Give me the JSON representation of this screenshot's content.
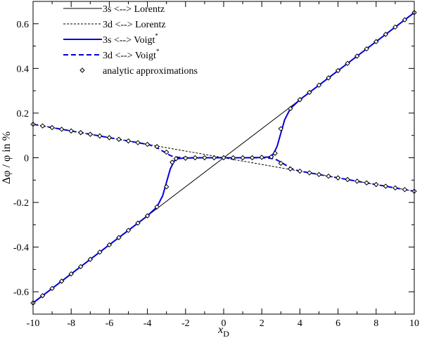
{
  "chart_data": {
    "type": "line",
    "xlabel": "x",
    "xlabel_sub": "D",
    "ylabel": "Δφ / φ in %",
    "xlim": [
      -10,
      10
    ],
    "ylim": [
      -0.7,
      0.7
    ],
    "x_ticks": [
      "-10",
      "-8",
      "-6",
      "-4",
      "-2",
      "0",
      "2",
      "4",
      "6",
      "8",
      "10"
    ],
    "y_ticks": [
      "-0.6",
      "-0.4",
      "-0.2",
      "0",
      "0.2",
      "0.4",
      "0.6"
    ],
    "x_tick_values": [
      -10,
      -8,
      -6,
      -4,
      -2,
      0,
      2,
      4,
      6,
      8,
      10
    ],
    "y_tick_values": [
      -0.6,
      -0.4,
      -0.2,
      0,
      0.2,
      0.4,
      0.6
    ],
    "legend_position": "top-left",
    "legend": [
      {
        "label": "3s <--> Lorentz",
        "style": "solid",
        "color": "#000000",
        "sup": ""
      },
      {
        "label": "3d <--> Lorentz",
        "style": "dashed",
        "color": "#000000",
        "sup": ""
      },
      {
        "label": "3s <--> Voigt",
        "style": "solid",
        "color": "#0000dd",
        "sup": "*"
      },
      {
        "label": "3d <--> Voigt",
        "style": "dashed",
        "color": "#0000dd",
        "sup": "*"
      },
      {
        "label": "analytic approximations",
        "style": "marker",
        "color": "#000000",
        "sup": ""
      }
    ],
    "series": [
      {
        "name": "3s <--> Lorentz",
        "color": "#000000",
        "style": "solid",
        "x": [
          -10,
          10
        ],
        "y": [
          -0.65,
          0.65
        ]
      },
      {
        "name": "3d <--> Lorentz",
        "color": "#000000",
        "style": "dashed",
        "x": [
          -10,
          10
        ],
        "y": [
          0.15,
          -0.15
        ]
      },
      {
        "name": "3s <--> Voigt",
        "color": "#0000dd",
        "style": "solid",
        "x": [
          -10,
          -8,
          -6,
          -4,
          -3.5,
          -3.2,
          -3.0,
          -2.8,
          -2.6,
          -2.4,
          -2.0,
          -1.0,
          0,
          1.0,
          2.0,
          2.4,
          2.6,
          2.8,
          3.0,
          3.2,
          3.5,
          4,
          6,
          8,
          10
        ],
        "y": [
          -0.65,
          -0.52,
          -0.39,
          -0.26,
          -0.22,
          -0.17,
          -0.11,
          -0.05,
          -0.015,
          -0.004,
          -0.001,
          0,
          0,
          0,
          0.001,
          0.004,
          0.015,
          0.05,
          0.11,
          0.17,
          0.22,
          0.26,
          0.39,
          0.52,
          0.65
        ]
      },
      {
        "name": "3d <--> Voigt",
        "color": "#0000dd",
        "style": "dashed",
        "x": [
          -10,
          -8,
          -6,
          -4,
          -3.6,
          -3.3,
          -3.0,
          -2.8,
          -2.6,
          -2.4,
          -2.0,
          -1.0,
          0,
          1.0,
          2.0,
          2.4,
          2.6,
          2.8,
          3.0,
          3.3,
          3.6,
          4,
          6,
          8,
          10
        ],
        "y": [
          0.15,
          0.12,
          0.09,
          0.06,
          0.05,
          0.035,
          0.02,
          0.01,
          0.004,
          0.002,
          0,
          0,
          0,
          0,
          0,
          -0.002,
          -0.004,
          -0.01,
          -0.02,
          -0.035,
          -0.05,
          -0.06,
          -0.09,
          -0.12,
          -0.15
        ]
      }
    ],
    "markers": {
      "name": "analytic approximations",
      "shape": "diamond",
      "points": [
        [
          -10,
          -0.65
        ],
        [
          -9.5,
          -0.6175
        ],
        [
          -9,
          -0.585
        ],
        [
          -8.5,
          -0.5525
        ],
        [
          -8,
          -0.52
        ],
        [
          -7.5,
          -0.4875
        ],
        [
          -7,
          -0.455
        ],
        [
          -6.5,
          -0.4225
        ],
        [
          -6,
          -0.39
        ],
        [
          -5.5,
          -0.3575
        ],
        [
          -5,
          -0.325
        ],
        [
          -4.5,
          -0.2925
        ],
        [
          -4,
          -0.26
        ],
        [
          -3.5,
          -0.22
        ],
        [
          -3,
          -0.13
        ],
        [
          3,
          0.13
        ],
        [
          3.5,
          0.22
        ],
        [
          4,
          0.26
        ],
        [
          4.5,
          0.2925
        ],
        [
          5,
          0.325
        ],
        [
          5.5,
          0.3575
        ],
        [
          6,
          0.39
        ],
        [
          6.5,
          0.4225
        ],
        [
          7,
          0.455
        ],
        [
          7.5,
          0.4875
        ],
        [
          8,
          0.52
        ],
        [
          8.5,
          0.5525
        ],
        [
          9,
          0.585
        ],
        [
          9.5,
          0.6175
        ],
        [
          10,
          0.65
        ],
        [
          -10,
          0.15
        ],
        [
          -9.5,
          0.1425
        ],
        [
          -9,
          0.135
        ],
        [
          -8.5,
          0.1275
        ],
        [
          -8,
          0.12
        ],
        [
          -7.5,
          0.1125
        ],
        [
          -7,
          0.105
        ],
        [
          -6.5,
          0.0975
        ],
        [
          -6,
          0.09
        ],
        [
          -5.5,
          0.0825
        ],
        [
          -5,
          0.075
        ],
        [
          -4.5,
          0.0675
        ],
        [
          -4,
          0.06
        ],
        [
          -3.5,
          0.05
        ],
        [
          -3,
          0.025
        ],
        [
          3,
          -0.025
        ],
        [
          3.5,
          -0.05
        ],
        [
          4,
          -0.06
        ],
        [
          4.5,
          -0.0675
        ],
        [
          5,
          -0.075
        ],
        [
          5.5,
          -0.0825
        ],
        [
          6,
          -0.09
        ],
        [
          6.5,
          -0.0975
        ],
        [
          7,
          -0.105
        ],
        [
          7.5,
          -0.1125
        ],
        [
          8,
          -0.12
        ],
        [
          8.5,
          -0.1275
        ],
        [
          9,
          -0.135
        ],
        [
          9.5,
          -0.1425
        ],
        [
          10,
          -0.15
        ],
        [
          -2.5,
          -0.004
        ],
        [
          -2,
          -0.002
        ],
        [
          -1.5,
          0
        ],
        [
          -1,
          0
        ],
        [
          -0.5,
          0
        ],
        [
          0,
          0
        ],
        [
          0.5,
          0
        ],
        [
          1,
          0
        ],
        [
          1.5,
          0
        ],
        [
          2,
          0.002
        ],
        [
          2.5,
          0.004
        ],
        [
          2.7,
          0.02
        ],
        [
          -2.7,
          -0.02
        ]
      ]
    }
  }
}
